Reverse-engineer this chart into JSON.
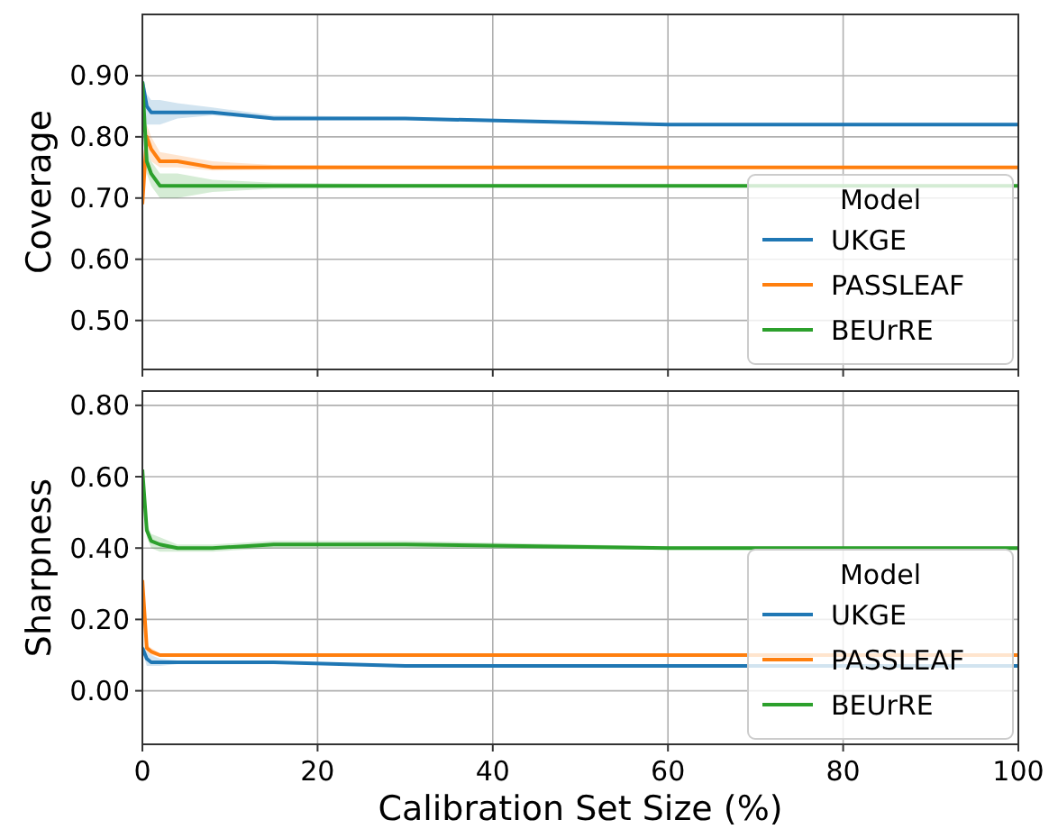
{
  "chart_data": [
    {
      "type": "line",
      "ylabel": "Coverage",
      "legend_title": "Model",
      "legend": "bottom right",
      "grid": true,
      "tick_labels": "y",
      "xlim": [
        0,
        100
      ],
      "xticks": [
        0,
        20,
        40,
        60,
        80,
        100
      ],
      "ylim": [
        0.42,
        1.0
      ],
      "yticks": [
        {
          "value": 0.5,
          "label": "0.50"
        },
        {
          "value": 0.6,
          "label": "0.60"
        },
        {
          "value": 0.7,
          "label": "0.70"
        },
        {
          "value": 0.8,
          "label": "0.80"
        },
        {
          "value": 0.9,
          "label": "0.90"
        }
      ],
      "x": [
        0,
        0.5,
        1,
        2,
        4,
        8,
        15,
        30,
        60,
        100
      ],
      "series": [
        {
          "name": "UKGE",
          "color": "#1f77b4",
          "values": [
            0.89,
            0.85,
            0.84,
            0.84,
            0.84,
            0.84,
            0.83,
            0.83,
            0.82,
            0.82
          ],
          "lower": [
            0.88,
            0.82,
            0.82,
            0.82,
            0.83,
            0.835,
            0.828,
            0.828,
            0.818,
            0.818
          ],
          "upper": [
            0.9,
            0.87,
            0.86,
            0.86,
            0.855,
            0.848,
            0.835,
            0.832,
            0.822,
            0.822
          ]
        },
        {
          "name": "PASSLEAF",
          "color": "#ff7f0e",
          "values": [
            0.69,
            0.8,
            0.78,
            0.76,
            0.76,
            0.75,
            0.75,
            0.75,
            0.75,
            0.75
          ],
          "lower": [
            0.68,
            0.78,
            0.76,
            0.75,
            0.75,
            0.745,
            0.746,
            0.747,
            0.748,
            0.748
          ],
          "upper": [
            0.7,
            0.82,
            0.8,
            0.775,
            0.77,
            0.76,
            0.754,
            0.753,
            0.752,
            0.752
          ]
        },
        {
          "name": "BEUrRE",
          "color": "#2ca02c",
          "values": [
            0.89,
            0.76,
            0.74,
            0.72,
            0.72,
            0.72,
            0.72,
            0.72,
            0.72,
            0.72
          ],
          "lower": [
            0.88,
            0.74,
            0.72,
            0.7,
            0.7,
            0.71,
            0.715,
            0.717,
            0.718,
            0.718
          ],
          "upper": [
            0.9,
            0.78,
            0.76,
            0.74,
            0.74,
            0.73,
            0.725,
            0.723,
            0.722,
            0.722
          ]
        }
      ]
    },
    {
      "type": "line",
      "ylabel": "Sharpness",
      "xlabel": "Calibration Set Size (%)",
      "legend_title": "Model",
      "legend": "bottom right",
      "grid": true,
      "xlim": [
        0,
        100
      ],
      "xticks": [
        0,
        20,
        40,
        60,
        80,
        100
      ],
      "ylim": [
        -0.15,
        0.84
      ],
      "yticks": [
        {
          "value": 0,
          "label": "0.00"
        },
        {
          "value": 0.2,
          "label": "0.20"
        },
        {
          "value": 0.4,
          "label": "0.40"
        },
        {
          "value": 0.6,
          "label": "0.60"
        },
        {
          "value": 0.8,
          "label": "0.80"
        }
      ],
      "x": [
        0,
        0.5,
        1,
        2,
        4,
        8,
        15,
        30,
        60,
        100
      ],
      "series": [
        {
          "name": "UKGE",
          "color": "#1f77b4",
          "values": [
            0.12,
            0.09,
            0.08,
            0.08,
            0.08,
            0.08,
            0.08,
            0.07,
            0.07,
            0.07
          ],
          "lower": [
            0.11,
            0.07,
            0.07,
            0.07,
            0.075,
            0.076,
            0.077,
            0.067,
            0.068,
            0.068
          ],
          "upper": [
            0.13,
            0.11,
            0.1,
            0.09,
            0.085,
            0.084,
            0.083,
            0.073,
            0.072,
            0.072
          ]
        },
        {
          "name": "PASSLEAF",
          "color": "#ff7f0e",
          "values": [
            0.31,
            0.12,
            0.11,
            0.1,
            0.1,
            0.1,
            0.1,
            0.1,
            0.1,
            0.1
          ],
          "lower": [
            0.3,
            0.11,
            0.1,
            0.095,
            0.096,
            0.097,
            0.098,
            0.098,
            0.099,
            0.099
          ],
          "upper": [
            0.32,
            0.13,
            0.12,
            0.105,
            0.104,
            0.103,
            0.102,
            0.102,
            0.101,
            0.101
          ]
        },
        {
          "name": "BEUrRE",
          "color": "#2ca02c",
          "values": [
            0.62,
            0.45,
            0.42,
            0.41,
            0.4,
            0.4,
            0.41,
            0.41,
            0.4,
            0.4
          ],
          "lower": [
            0.6,
            0.43,
            0.4,
            0.39,
            0.39,
            0.39,
            0.4,
            0.4,
            0.395,
            0.395
          ],
          "upper": [
            0.64,
            0.47,
            0.44,
            0.43,
            0.41,
            0.41,
            0.42,
            0.42,
            0.405,
            0.405
          ]
        }
      ]
    }
  ]
}
